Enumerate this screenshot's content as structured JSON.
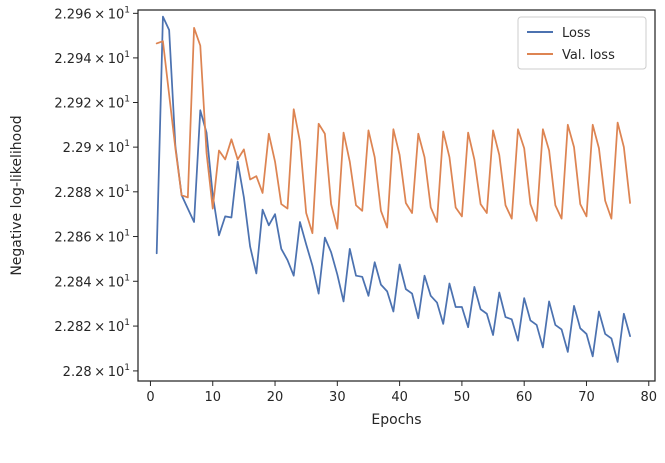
{
  "chart_data": {
    "type": "line",
    "xlabel": "Epochs",
    "ylabel": "Negative log-likelihood",
    "xlim": [
      -2,
      81
    ],
    "ylim": [
      22.7955,
      22.9615
    ],
    "yscale": "log",
    "grid": false,
    "legend_position": "top-right",
    "x_ticks": [
      {
        "value": 0,
        "label": "0"
      },
      {
        "value": 10,
        "label": "10"
      },
      {
        "value": 20,
        "label": "20"
      },
      {
        "value": 30,
        "label": "30"
      },
      {
        "value": 40,
        "label": "40"
      },
      {
        "value": 50,
        "label": "50"
      },
      {
        "value": 60,
        "label": "60"
      },
      {
        "value": 70,
        "label": "70"
      },
      {
        "value": 80,
        "label": "80"
      }
    ],
    "y_ticks": [
      {
        "value": 22.8,
        "mantissa": "2.28",
        "exponent": "1"
      },
      {
        "value": 22.82,
        "mantissa": "2.282",
        "exponent": "1"
      },
      {
        "value": 22.84,
        "mantissa": "2.284",
        "exponent": "1"
      },
      {
        "value": 22.86,
        "mantissa": "2.286",
        "exponent": "1"
      },
      {
        "value": 22.88,
        "mantissa": "2.288",
        "exponent": "1"
      },
      {
        "value": 22.9,
        "mantissa": "2.29",
        "exponent": "1"
      },
      {
        "value": 22.92,
        "mantissa": "2.292",
        "exponent": "1"
      },
      {
        "value": 22.94,
        "mantissa": "2.294",
        "exponent": "1"
      },
      {
        "value": 22.96,
        "mantissa": "2.296",
        "exponent": "1"
      }
    ],
    "times_sign": "×",
    "tick_base": "10",
    "series": [
      {
        "name": "Loss",
        "color": "#4c72b0",
        "x": [
          1,
          2,
          3,
          4,
          5,
          6,
          7,
          8,
          9,
          10,
          11,
          12,
          13,
          14,
          15,
          16,
          17,
          18,
          19,
          20,
          21,
          22,
          23,
          24,
          25,
          26,
          27,
          28,
          29,
          30,
          31,
          32,
          33,
          34,
          35,
          36,
          37,
          38,
          39,
          40,
          41,
          42,
          43,
          44,
          45,
          46,
          47,
          48,
          49,
          50,
          51,
          52,
          53,
          54,
          55,
          56,
          57,
          58,
          59,
          60,
          61,
          62,
          63,
          64,
          65,
          66,
          67,
          68,
          69,
          70,
          71,
          72,
          73,
          74,
          75,
          76,
          77
        ],
        "y": [
          22.8525,
          22.9585,
          22.9525,
          22.9005,
          22.8785,
          22.8725,
          22.8665,
          22.9165,
          22.9065,
          22.8785,
          22.8605,
          22.869,
          22.8685,
          22.8935,
          22.8775,
          22.8555,
          22.8435,
          22.872,
          22.865,
          22.87,
          22.8545,
          22.8495,
          22.8425,
          22.8665,
          22.8565,
          22.847,
          22.8345,
          22.8595,
          22.853,
          22.843,
          22.831,
          22.8545,
          22.8425,
          22.842,
          22.8335,
          22.8485,
          22.8385,
          22.8355,
          22.8265,
          22.8475,
          22.8365,
          22.8345,
          22.8235,
          22.8425,
          22.8335,
          22.8305,
          22.821,
          22.839,
          22.8285,
          22.8285,
          22.8195,
          22.8375,
          22.8275,
          22.8255,
          22.816,
          22.835,
          22.824,
          22.823,
          22.8135,
          22.8325,
          22.8225,
          22.8205,
          22.8105,
          22.831,
          22.8205,
          22.8185,
          22.8085,
          22.829,
          22.819,
          22.8165,
          22.8065,
          22.8265,
          22.8165,
          22.8145,
          22.804,
          22.8255,
          22.8155
        ]
      },
      {
        "name": "Val. loss",
        "color": "#dd8452",
        "x": [
          1,
          2,
          3,
          4,
          5,
          6,
          7,
          8,
          9,
          10,
          11,
          12,
          13,
          14,
          15,
          16,
          17,
          18,
          19,
          20,
          21,
          22,
          23,
          24,
          25,
          26,
          27,
          28,
          29,
          30,
          31,
          32,
          33,
          34,
          35,
          36,
          37,
          38,
          39,
          40,
          41,
          42,
          43,
          44,
          45,
          46,
          47,
          48,
          49,
          50,
          51,
          52,
          53,
          54,
          55,
          56,
          57,
          58,
          59,
          60,
          61,
          62,
          63,
          64,
          65,
          66,
          67,
          68,
          69,
          70,
          71,
          72,
          73,
          74,
          75,
          76,
          77
        ],
        "y": [
          22.9465,
          22.9475,
          22.9235,
          22.8995,
          22.8785,
          22.8775,
          22.9535,
          22.9455,
          22.8975,
          22.8725,
          22.8985,
          22.8945,
          22.9035,
          22.8945,
          22.899,
          22.8855,
          22.887,
          22.8795,
          22.906,
          22.8935,
          22.8745,
          22.8725,
          22.917,
          22.9025,
          22.8705,
          22.8615,
          22.9105,
          22.906,
          22.8745,
          22.8635,
          22.9065,
          22.8935,
          22.874,
          22.8715,
          22.9075,
          22.8955,
          22.8715,
          22.864,
          22.908,
          22.8965,
          22.875,
          22.8705,
          22.906,
          22.8955,
          22.873,
          22.8665,
          22.907,
          22.8955,
          22.873,
          22.869,
          22.9065,
          22.8945,
          22.8745,
          22.8705,
          22.9075,
          22.8965,
          22.874,
          22.868,
          22.908,
          22.8995,
          22.8745,
          22.867,
          22.908,
          22.8985,
          22.874,
          22.868,
          22.91,
          22.9,
          22.8745,
          22.869,
          22.91,
          22.8995,
          22.876,
          22.868,
          22.911,
          22.9,
          22.875
        ]
      }
    ]
  }
}
